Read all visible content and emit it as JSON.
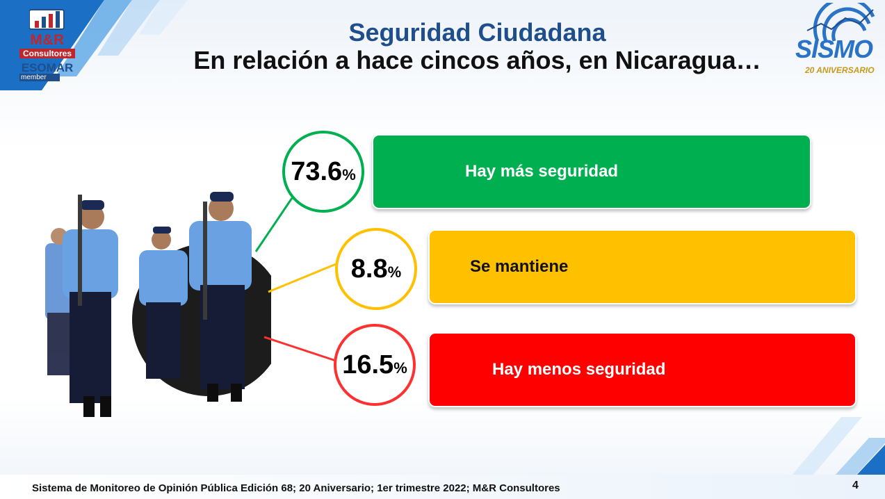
{
  "header": {
    "title": "Seguridad Ciudadana",
    "subtitle": "En relación a hace cincos años, en Nicaragua…"
  },
  "logos": {
    "mr_brand": "M&R",
    "mr_sub": "Consultores",
    "mr_esomar": "ESOMAR",
    "mr_member": "member",
    "sismo_word": "SISMO",
    "sismo_anniv": "20 ANIVERSARIO"
  },
  "results": [
    {
      "value": "73.6",
      "unit": "%",
      "label": "Hay más seguridad",
      "color": "#00b050",
      "text_color": "#ffffff"
    },
    {
      "value": "8.8",
      "unit": "%",
      "label": "Se mantiene",
      "color": "#ffc000",
      "text_color": "#111111"
    },
    {
      "value": "16.5",
      "unit": "%",
      "label": "Hay menos seguridad",
      "color": "#ff0000",
      "text_color": "#ffffff"
    }
  ],
  "footer": {
    "text": "Sistema de Monitoreo de Opinión Pública  Edición 68; 20 Aniversario;  1er trimestre 2022; M&R Consultores",
    "page_number": "4"
  }
}
